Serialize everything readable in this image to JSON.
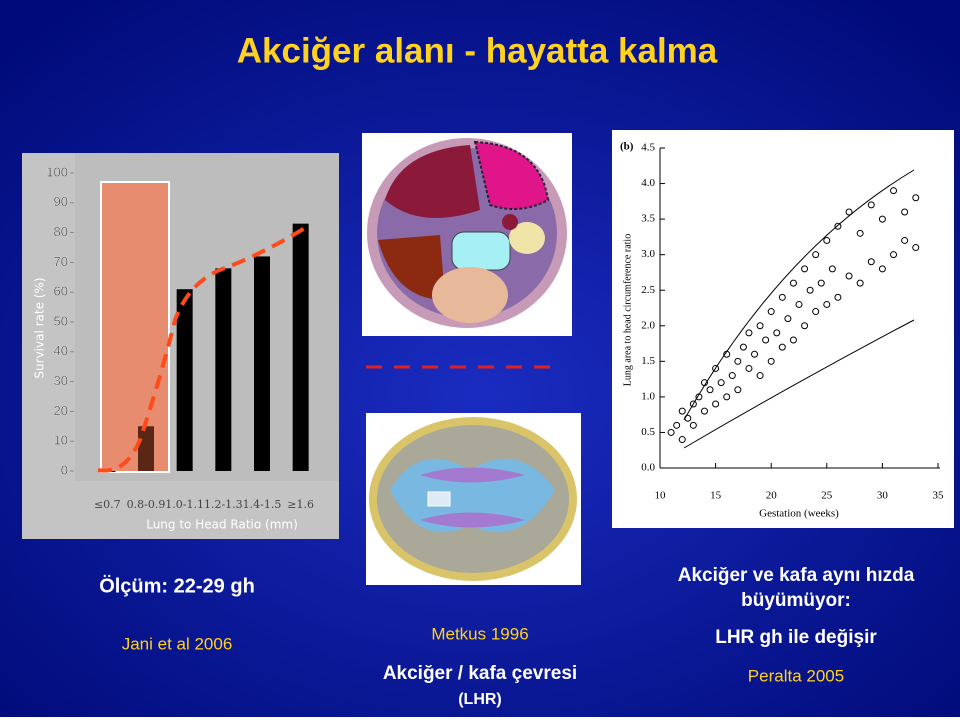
{
  "title": "Akciğer alanı - hayatta kalma",
  "chart_data": [
    {
      "type": "bar",
      "ylabel": "Survival rate (%)",
      "xlabel": "Lung to Head Ratio (mm)",
      "categories": [
        "≤0.7",
        "0.8-0.9",
        "1.0-1.1",
        "1.2-1.3",
        "1.4-1.5",
        "≥1.6"
      ],
      "values": [
        0,
        15,
        61,
        68,
        72,
        83
      ],
      "colors": [
        "#000000",
        "#5a2616",
        "#000000",
        "#000000",
        "#000000",
        "#000000"
      ],
      "ylim": [
        0,
        100
      ],
      "yticks": [
        0,
        10,
        20,
        30,
        40,
        50,
        60,
        70,
        80,
        90,
        100
      ]
    },
    {
      "type": "scatter",
      "panel_label": "(b)",
      "ylabel": "Lung area to head circumference ratio",
      "xlabel": "Gestation (weeks)",
      "x": [
        11,
        11.5,
        12,
        12,
        12.5,
        13,
        13,
        13.5,
        14,
        14,
        14.5,
        15,
        15,
        15.5,
        16,
        16,
        16.5,
        17,
        17,
        17.5,
        18,
        18,
        18.5,
        19,
        19,
        19.5,
        20,
        20,
        20.5,
        21,
        21,
        21.5,
        22,
        22,
        22.5,
        23,
        23,
        23.5,
        24,
        24,
        24.5,
        25,
        25,
        25.5,
        26,
        26,
        27,
        27,
        28,
        28,
        29,
        29,
        30,
        30,
        31,
        31,
        32,
        32,
        33,
        33
      ],
      "values": [
        0.5,
        0.6,
        0.4,
        0.8,
        0.7,
        0.9,
        0.6,
        1.0,
        0.8,
        1.2,
        1.1,
        0.9,
        1.4,
        1.2,
        1.0,
        1.6,
        1.3,
        1.5,
        1.1,
        1.7,
        1.4,
        1.9,
        1.6,
        1.3,
        2.0,
        1.8,
        1.5,
        2.2,
        1.9,
        1.7,
        2.4,
        2.1,
        1.8,
        2.6,
        2.3,
        2.0,
        2.8,
        2.5,
        2.2,
        3.0,
        2.6,
        2.3,
        3.2,
        2.8,
        2.4,
        3.4,
        2.7,
        3.6,
        2.6,
        3.3,
        2.9,
        3.7,
        2.8,
        3.5,
        3.0,
        3.9,
        3.2,
        3.6,
        3.1,
        3.8
      ],
      "xlim": [
        10,
        35
      ],
      "xticks": [
        10,
        15,
        20,
        25,
        30,
        35
      ],
      "ylim": [
        0,
        4.5
      ],
      "yticks": [
        {
          "value": 0,
          "label": "0.0"
        },
        {
          "value": 0.5,
          "label": "0.5"
        },
        {
          "value": 1,
          "label": "1.0"
        },
        {
          "value": 1.5,
          "label": "1.5"
        },
        {
          "value": 2,
          "label": "2.0"
        },
        {
          "value": 2.5,
          "label": "2.5"
        },
        {
          "value": 3,
          "label": "3.0"
        },
        {
          "value": 3.5,
          "label": "3.5"
        },
        {
          "value": 4,
          "label": "4.0"
        },
        {
          "value": 4.5,
          "label": "4.5"
        }
      ]
    }
  ],
  "captions": {
    "measure": "Ölçüm: 22-29 gh",
    "ref_left": "Jani et al 2006",
    "ref_middle": "Metkus 1996",
    "ratio": "Akciğer / kafa çevresi",
    "ratio_abbr": "(LHR)",
    "growth_1": "Akciğer ve kafa aynı hızda",
    "growth_2": "büyümüyor:",
    "change": "LHR gh ile değişir",
    "ref_right": "Peralta 2005"
  }
}
